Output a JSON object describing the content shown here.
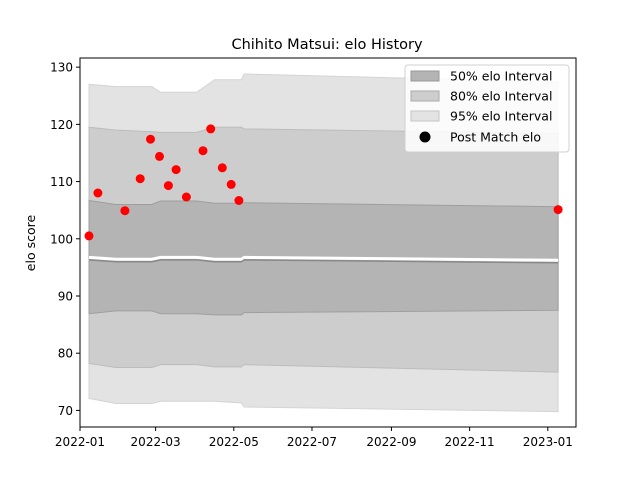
{
  "chart_data": {
    "type": "scatter",
    "title": "Chihito Matsui: elo History",
    "xlabel": "",
    "ylabel": "elo score",
    "x_axis": {
      "type": "date",
      "min": "2022-01-01",
      "max": "2023-01-23",
      "ticks": [
        "2022-01-01",
        "2022-03-01",
        "2022-05-01",
        "2022-07-01",
        "2022-09-01",
        "2022-11-01",
        "2023-01-01"
      ],
      "tick_labels": [
        "2022-01",
        "2022-03",
        "2022-05",
        "2022-07",
        "2022-09",
        "2022-11",
        "2023-01"
      ]
    },
    "y_axis": {
      "min": 67.1,
      "max": 131.6,
      "ticks": [
        70,
        80,
        90,
        100,
        110,
        120,
        130
      ],
      "tick_labels": [
        "70",
        "80",
        "90",
        "100",
        "110",
        "120",
        "130"
      ]
    },
    "grid": false,
    "legend": {
      "position": "top-right",
      "entries": [
        {
          "label": "50% elo Interval",
          "color": "#b4b4b4"
        },
        {
          "label": "80% elo Interval",
          "color": "#cdcdcd"
        },
        {
          "label": "95% elo Interval",
          "color": "#e3e3e3"
        },
        {
          "label": "Post Match elo",
          "color": "#000000",
          "marker": "circle"
        }
      ]
    },
    "band_x": [
      "2022-01-08",
      "2022-01-29",
      "2022-02-26",
      "2022-03-05",
      "2022-04-02",
      "2022-04-16",
      "2022-05-07",
      "2022-05-09",
      "2023-01-09"
    ],
    "bands": {
      "95": {
        "upper": [
          127.0,
          126.6,
          126.6,
          125.6,
          125.6,
          127.8,
          127.8,
          128.8,
          127.4
        ],
        "lower": [
          72.1,
          71.2,
          71.2,
          71.6,
          71.6,
          71.6,
          71.3,
          70.6,
          69.8
        ]
      },
      "80": {
        "upper": [
          119.5,
          119.0,
          118.7,
          118.6,
          118.6,
          119.5,
          119.5,
          119.2,
          118.4
        ],
        "lower": [
          78.2,
          77.5,
          77.5,
          78.0,
          78.0,
          77.6,
          77.6,
          78.0,
          76.7
        ]
      },
      "50": {
        "upper": [
          106.7,
          106.0,
          106.0,
          106.6,
          106.6,
          106.2,
          106.2,
          106.3,
          105.6
        ],
        "lower": [
          86.9,
          87.4,
          87.4,
          86.9,
          86.9,
          86.7,
          86.7,
          87.1,
          87.5
        ]
      }
    },
    "mean_line": {
      "x": [
        "2022-01-08",
        "2022-01-29",
        "2022-02-26",
        "2022-03-05",
        "2022-04-02",
        "2022-04-16",
        "2022-05-07",
        "2022-05-09",
        "2023-01-09"
      ],
      "y": [
        96.3,
        96.0,
        96.0,
        96.3,
        96.3,
        96.0,
        96.0,
        96.3,
        95.8
      ]
    },
    "series": [
      {
        "values": [
          {
            "x": "2022-01-08",
            "y": 100.5
          },
          {
            "x": "2022-01-15",
            "y": 108.0
          },
          {
            "x": "2022-02-05",
            "y": 104.9
          },
          {
            "x": "2022-02-17",
            "y": 110.5
          },
          {
            "x": "2022-02-25",
            "y": 117.4
          },
          {
            "x": "2022-03-04",
            "y": 114.4
          },
          {
            "x": "2022-03-11",
            "y": 109.3
          },
          {
            "x": "2022-03-17",
            "y": 112.1
          },
          {
            "x": "2022-03-25",
            "y": 107.3
          },
          {
            "x": "2022-04-07",
            "y": 115.4
          },
          {
            "x": "2022-04-13",
            "y": 119.2
          },
          {
            "x": "2022-04-22",
            "y": 112.4
          },
          {
            "x": "2022-04-29",
            "y": 109.5
          },
          {
            "x": "2022-05-05",
            "y": 106.7
          },
          {
            "x": "2023-01-09",
            "y": 105.1
          }
        ],
        "color": "#ff0000"
      }
    ]
  }
}
